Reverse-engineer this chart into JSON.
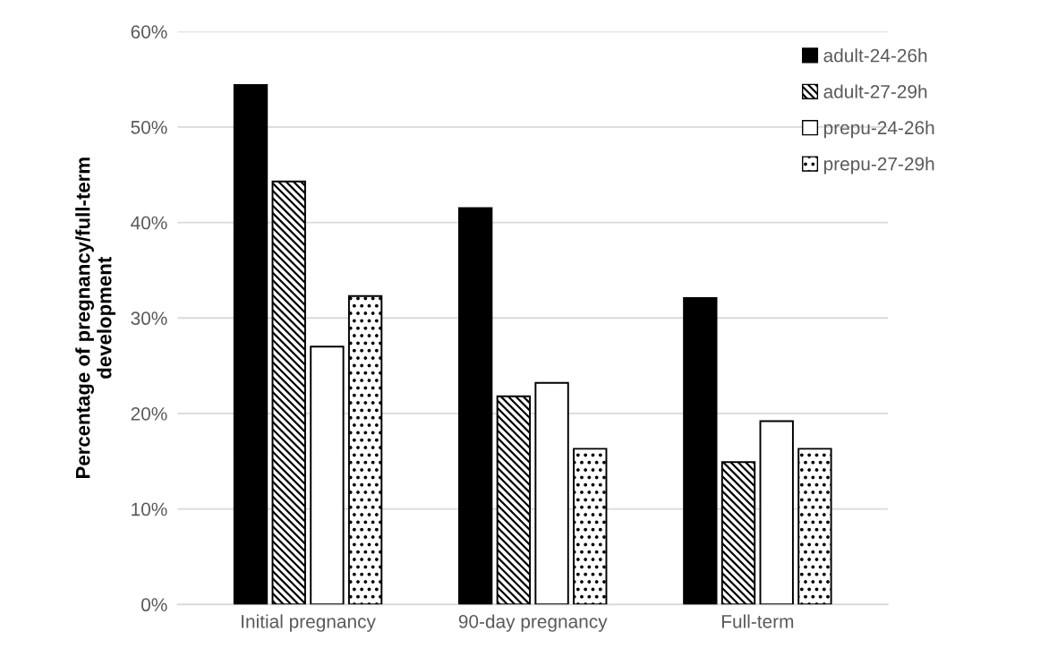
{
  "chart_data": {
    "type": "bar",
    "ylabel": "Percentage of pregnancy/full-term\ndevelopment",
    "categories": [
      "Initial pregnancy",
      "90-day pregnancy",
      "Full-term"
    ],
    "series": [
      {
        "name": "adult-24-26h",
        "color": "#000000",
        "values": [
          54.4,
          41.5,
          32.1
        ]
      },
      {
        "name": "adult-27-29h",
        "color": "#000000",
        "values": [
          44.3,
          21.8,
          14.9
        ]
      },
      {
        "name": "prepu-24-26h",
        "color": "#ffffff",
        "values": [
          27.0,
          23.2,
          19.2
        ]
      },
      {
        "name": "prepu-27-29h",
        "color": "#000000",
        "values": [
          32.3,
          16.3,
          16.3
        ]
      }
    ],
    "ylim": [
      0,
      60
    ],
    "yticks": [
      {
        "value": 0,
        "label": "0%"
      },
      {
        "value": 10,
        "label": "10%"
      },
      {
        "value": 20,
        "label": "20%"
      },
      {
        "value": 30,
        "label": "30%"
      },
      {
        "value": 40,
        "label": "40%"
      },
      {
        "value": 50,
        "label": "50%"
      },
      {
        "value": 60,
        "label": "60%"
      }
    ],
    "grid": "y",
    "legend": "top right"
  }
}
